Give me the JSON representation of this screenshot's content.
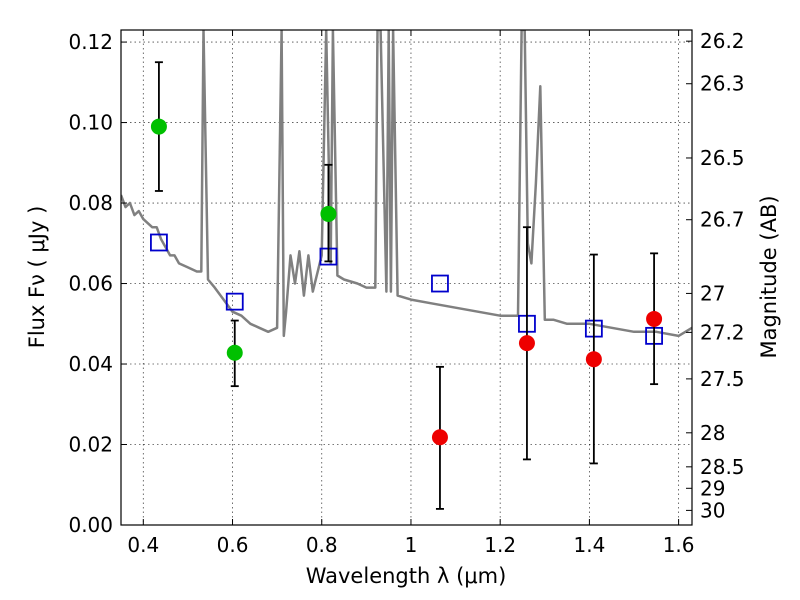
{
  "chart_data": {
    "type": "scatter",
    "xlabel": "Wavelength  λ (μm)",
    "ylabel": "Flux  Fν  ( μJy )",
    "ylabel_right": "Magnitude (AB)",
    "xlim": [
      0.35,
      1.63
    ],
    "ylim": [
      0.0,
      0.123
    ],
    "grid": true,
    "x_ticks": [
      {
        "value": 0.4,
        "label": "0.4"
      },
      {
        "value": 0.6,
        "label": "0.6"
      },
      {
        "value": 0.8,
        "label": "0.8"
      },
      {
        "value": 1.0,
        "label": "1"
      },
      {
        "value": 1.2,
        "label": "1.2"
      },
      {
        "value": 1.4,
        "label": "1.4"
      },
      {
        "value": 1.6,
        "label": "1.6"
      }
    ],
    "y_ticks": [
      {
        "value": 0.0,
        "label": "0.00"
      },
      {
        "value": 0.02,
        "label": "0.02"
      },
      {
        "value": 0.04,
        "label": "0.04"
      },
      {
        "value": 0.06,
        "label": "0.06"
      },
      {
        "value": 0.08,
        "label": "0.08"
      },
      {
        "value": 0.1,
        "label": "0.10"
      },
      {
        "value": 0.12,
        "label": "0.12"
      }
    ],
    "right_ticks": [
      {
        "value": 26.2,
        "label": "26.2"
      },
      {
        "value": 26.3,
        "label": "26.3"
      },
      {
        "value": 26.5,
        "label": "26.5"
      },
      {
        "value": 26.7,
        "label": "26.7"
      },
      {
        "value": 27.0,
        "label": "27"
      },
      {
        "value": 27.2,
        "label": "27.2"
      },
      {
        "value": 27.5,
        "label": "27.5"
      },
      {
        "value": 28.0,
        "label": "28"
      },
      {
        "value": 28.5,
        "label": "28.5"
      },
      {
        "value": 29.0,
        "label": "29"
      },
      {
        "value": 30.0,
        "label": "30"
      }
    ],
    "series": [
      {
        "kind": "line",
        "color": "#808080",
        "x": [
          0.35,
          0.36,
          0.37,
          0.38,
          0.39,
          0.4,
          0.41,
          0.42,
          0.43,
          0.44,
          0.45,
          0.46,
          0.47,
          0.48,
          0.5,
          0.52,
          0.53,
          0.535,
          0.545,
          0.56,
          0.58,
          0.6,
          0.62,
          0.64,
          0.66,
          0.68,
          0.7,
          0.71,
          0.715,
          0.72,
          0.73,
          0.74,
          0.75,
          0.76,
          0.77,
          0.78,
          0.8,
          0.81,
          0.82,
          0.825,
          0.835,
          0.85,
          0.88,
          0.9,
          0.92,
          0.925,
          0.932,
          0.945,
          0.95,
          0.955,
          0.96,
          0.97,
          1.0,
          1.05,
          1.1,
          1.15,
          1.2,
          1.24,
          1.248,
          1.255,
          1.262,
          1.27,
          1.28,
          1.29,
          1.3,
          1.32,
          1.35,
          1.4,
          1.45,
          1.5,
          1.55,
          1.6,
          1.63
        ],
        "y": [
          0.082,
          0.079,
          0.08,
          0.077,
          0.078,
          0.076,
          0.075,
          0.074,
          0.074,
          0.071,
          0.069,
          0.067,
          0.067,
          0.065,
          0.064,
          0.063,
          0.063,
          0.123,
          0.061,
          0.059,
          0.056,
          0.053,
          0.052,
          0.05,
          0.049,
          0.048,
          0.049,
          0.123,
          0.047,
          0.053,
          0.067,
          0.06,
          0.068,
          0.057,
          0.067,
          0.058,
          0.067,
          0.123,
          0.065,
          0.123,
          0.062,
          0.061,
          0.06,
          0.059,
          0.059,
          0.123,
          0.123,
          0.058,
          0.123,
          0.058,
          0.123,
          0.057,
          0.056,
          0.055,
          0.054,
          0.053,
          0.052,
          0.052,
          0.123,
          0.123,
          0.07,
          0.065,
          0.085,
          0.109,
          0.051,
          0.051,
          0.05,
          0.05,
          0.049,
          0.048,
          0.048,
          0.047,
          0.049
        ]
      },
      {
        "kind": "squares",
        "color": "#0000cc",
        "x": [
          0.435,
          0.605,
          0.815,
          1.065,
          1.26,
          1.41,
          1.545
        ],
        "y": [
          0.0702,
          0.0555,
          0.0667,
          0.06,
          0.05,
          0.0488,
          0.047
        ]
      },
      {
        "kind": "points",
        "color": "#00c000",
        "x": [
          0.435,
          0.605,
          0.815
        ],
        "y": [
          0.099,
          0.0428,
          0.0773
        ],
        "yerr_low": [
          0.083,
          0.0345,
          0.0655
        ],
        "yerr_high": [
          0.115,
          0.0508,
          0.0895
        ]
      },
      {
        "kind": "points",
        "color": "#ee0000",
        "x": [
          1.065,
          1.26,
          1.41,
          1.545
        ],
        "y": [
          0.0218,
          0.0452,
          0.0412,
          0.0512
        ],
        "yerr_low": [
          0.004,
          0.0163,
          0.0153,
          0.035
        ],
        "yerr_high": [
          0.0393,
          0.074,
          0.0672,
          0.0675
        ]
      }
    ]
  }
}
